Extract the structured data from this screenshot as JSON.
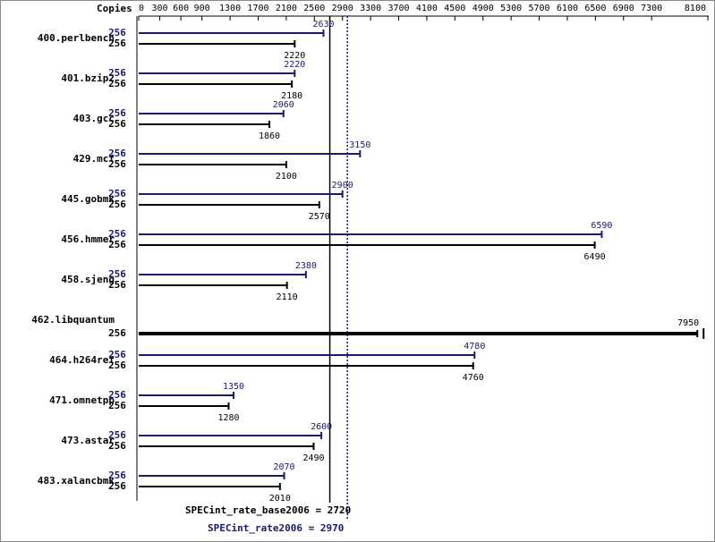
{
  "chart_data": {
    "type": "bar",
    "orientation": "horizontal",
    "copies_header": "Copies",
    "categories": [
      "400.perlbench",
      "401.bzip2",
      "403.gcc",
      "429.mcf",
      "445.gobmk",
      "456.hmmer",
      "458.sjeng",
      "462.libquantum",
      "464.h264ref",
      "471.omnetpp",
      "473.astar",
      "483.xalancbmk"
    ],
    "series": [
      {
        "color": "#191970",
        "values": [
          2630,
          2220,
          2060,
          3150,
          2900,
          6590,
          2380,
          null,
          4780,
          1350,
          2600,
          2070
        ],
        "copies": [
          256,
          256,
          256,
          256,
          256,
          256,
          256,
          null,
          256,
          256,
          256,
          256
        ]
      },
      {
        "color": "#000000",
        "values": [
          2220,
          2180,
          1860,
          2100,
          2570,
          6490,
          2110,
          7950,
          4760,
          1280,
          2490,
          2010
        ],
        "copies": [
          256,
          256,
          256,
          256,
          256,
          256,
          256,
          256,
          256,
          256,
          256,
          256
        ]
      }
    ],
    "xlim": [
      0,
      8100
    ],
    "xticks": [
      0,
      300,
      600,
      900,
      1300,
      1700,
      2100,
      2500,
      2900,
      3300,
      3700,
      4100,
      4500,
      4900,
      5300,
      5700,
      6100,
      6500,
      6900,
      7300,
      8100
    ],
    "reference_lines": [
      {
        "label": "SPECint_rate_base2006 = 2720",
        "value": 2720,
        "color": "#000000",
        "style": "solid"
      },
      {
        "label": "SPECint_rate2006 = 2970",
        "value": 2970,
        "color": "#191970",
        "style": "dotted"
      }
    ]
  }
}
